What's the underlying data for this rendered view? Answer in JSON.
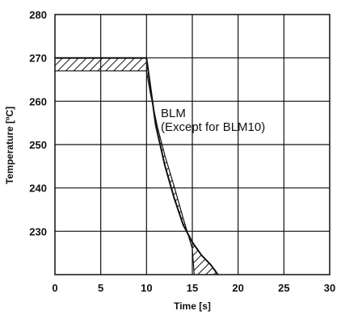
{
  "chart_data": {
    "type": "line",
    "title": "",
    "xlabel": "Time [s]",
    "ylabel": "Temperature [ºC]",
    "xlim": [
      0,
      30
    ],
    "ylim": [
      220,
      280
    ],
    "x_ticks": [
      "0",
      "5",
      "10",
      "15",
      "20",
      "25",
      "30"
    ],
    "y_ticks": [
      "230",
      "240",
      "250",
      "260",
      "270",
      "280"
    ],
    "x_tick_values": [
      0,
      5,
      10,
      15,
      20,
      25,
      30
    ],
    "y_tick_values": [
      230,
      240,
      250,
      260,
      270,
      280
    ],
    "grid": true,
    "annotation": [
      "BLM",
      "(Except for BLM10)"
    ],
    "series": [
      {
        "role": "upper-profile",
        "x": [
          0,
          10,
          11,
          12,
          13,
          14,
          15,
          16,
          17,
          17.8
        ],
        "y": [
          270,
          270,
          254.5,
          245.2,
          237.8,
          231.5,
          227.5,
          224.5,
          222.3,
          220
        ]
      },
      {
        "role": "lower-profile",
        "x": [
          0,
          10,
          10.4,
          11.2,
          12,
          13,
          14,
          15,
          15.2
        ],
        "y": [
          267,
          267,
          262,
          254,
          247.5,
          240.5,
          233,
          226,
          220
        ]
      }
    ],
    "hatch_pattern": "diagonal"
  },
  "colors": {
    "ink": "#111111",
    "background": "#ffffff"
  }
}
